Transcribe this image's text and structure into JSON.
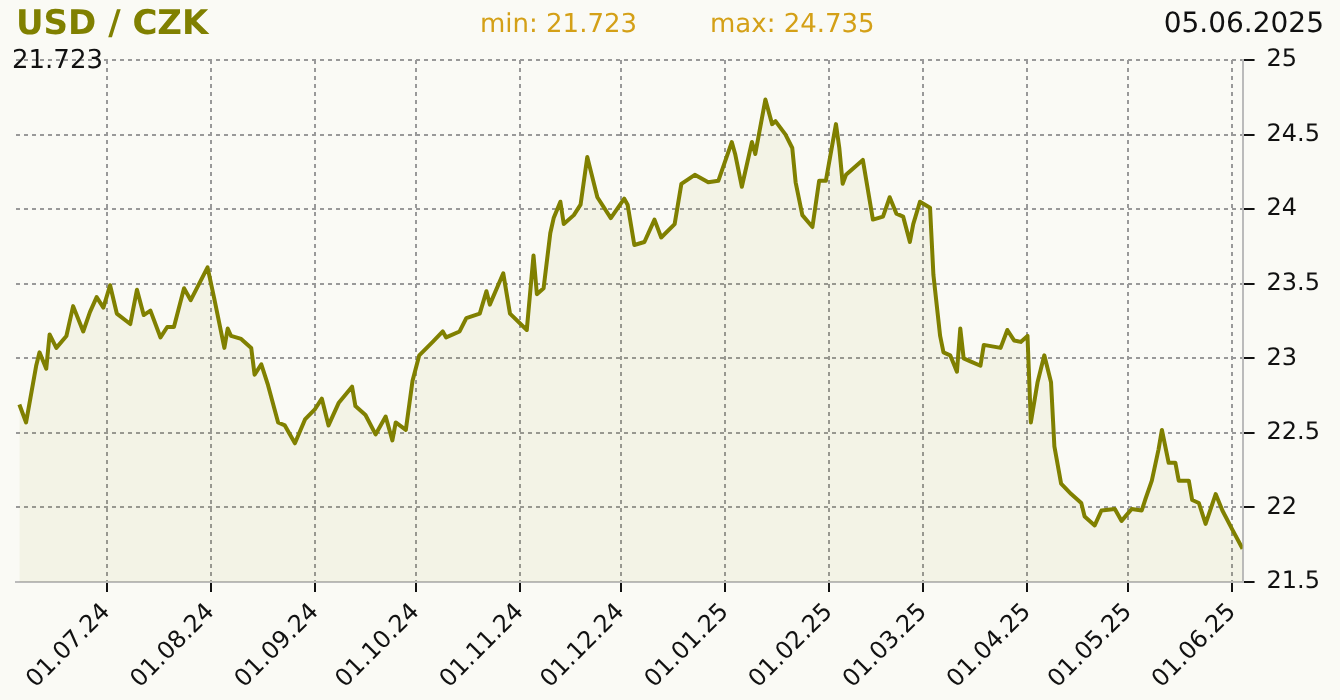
{
  "chart_data": {
    "type": "area",
    "title": "USD / CZK",
    "annotations": [
      "min: 21.723",
      "max: 24.735",
      "05.06.2025",
      "21.723"
    ],
    "x": [
      "2024-06-05",
      "2024-06-07",
      "2024-06-10",
      "2024-06-11",
      "2024-06-13",
      "2024-06-14",
      "2024-06-16",
      "2024-06-19",
      "2024-06-21",
      "2024-06-24",
      "2024-06-26",
      "2024-06-28",
      "2024-06-30",
      "2024-07-02",
      "2024-07-04",
      "2024-07-08",
      "2024-07-10",
      "2024-07-12",
      "2024-07-14",
      "2024-07-17",
      "2024-07-19",
      "2024-07-21",
      "2024-07-24",
      "2024-07-26",
      "2024-07-31",
      "2024-08-02",
      "2024-08-05",
      "2024-08-06",
      "2024-08-07",
      "2024-08-10",
      "2024-08-13",
      "2024-08-14",
      "2024-08-16",
      "2024-08-18",
      "2024-08-21",
      "2024-08-23",
      "2024-08-26",
      "2024-08-29",
      "2024-09-01",
      "2024-09-03",
      "2024-09-05",
      "2024-09-08",
      "2024-09-12",
      "2024-09-13",
      "2024-09-16",
      "2024-09-19",
      "2024-09-22",
      "2024-09-24",
      "2024-09-25",
      "2024-09-28",
      "2024-09-30",
      "2024-10-02",
      "2024-10-06",
      "2024-10-09",
      "2024-10-10",
      "2024-10-14",
      "2024-10-16",
      "2024-10-20",
      "2024-10-22",
      "2024-10-23",
      "2024-10-27",
      "2024-10-29",
      "2024-11-03",
      "2024-11-05",
      "2024-11-06",
      "2024-11-08",
      "2024-11-10",
      "2024-11-11",
      "2024-11-13",
      "2024-11-14",
      "2024-11-17",
      "2024-11-19",
      "2024-11-21",
      "2024-11-22",
      "2024-11-24",
      "2024-11-28",
      "2024-12-02",
      "2024-12-03",
      "2024-12-05",
      "2024-12-08",
      "2024-12-11",
      "2024-12-13",
      "2024-12-17",
      "2024-12-19",
      "2024-12-23",
      "2024-12-27",
      "2024-12-30",
      "2025-01-03",
      "2025-01-04",
      "2025-01-06",
      "2025-01-09",
      "2025-01-10",
      "2025-01-13",
      "2025-01-15",
      "2025-01-16",
      "2025-01-19",
      "2025-01-21",
      "2025-01-22",
      "2025-01-24",
      "2025-01-27",
      "2025-01-29",
      "2025-01-31",
      "2025-02-03",
      "2025-02-04",
      "2025-02-05",
      "2025-02-06",
      "2025-02-11",
      "2025-02-14",
      "2025-02-17",
      "2025-02-19",
      "2025-02-21",
      "2025-02-23",
      "2025-02-25",
      "2025-02-26",
      "2025-02-28",
      "2025-03-03",
      "2025-03-04",
      "2025-03-06",
      "2025-03-07",
      "2025-03-09",
      "2025-03-11",
      "2025-03-12",
      "2025-03-13",
      "2025-03-15",
      "2025-03-18",
      "2025-03-19",
      "2025-03-24",
      "2025-03-26",
      "2025-03-28",
      "2025-03-30",
      "2025-04-01",
      "2025-04-02",
      "2025-04-04",
      "2025-04-06",
      "2025-04-08",
      "2025-04-09",
      "2025-04-11",
      "2025-04-14",
      "2025-04-17",
      "2025-04-18",
      "2025-04-21",
      "2025-04-23",
      "2025-04-27",
      "2025-04-29",
      "2025-05-02",
      "2025-05-05",
      "2025-05-06",
      "2025-05-08",
      "2025-05-10",
      "2025-05-11",
      "2025-05-13",
      "2025-05-15",
      "2025-05-16",
      "2025-05-19",
      "2025-05-20",
      "2025-05-22",
      "2025-05-24",
      "2025-05-27",
      "2025-05-29",
      "2025-06-01",
      "2025-06-04"
    ],
    "series": [
      {
        "color": "#808000",
        "values": [
          22.69,
          22.57,
          22.95,
          23.04,
          22.93,
          23.16,
          23.07,
          23.15,
          23.35,
          23.18,
          23.31,
          23.41,
          23.34,
          23.49,
          23.3,
          23.23,
          23.46,
          23.29,
          23.32,
          23.14,
          23.21,
          23.21,
          23.47,
          23.39,
          23.61,
          23.4,
          23.07,
          23.2,
          23.15,
          23.13,
          23.07,
          22.89,
          22.96,
          22.82,
          22.57,
          22.55,
          22.43,
          22.59,
          22.66,
          22.73,
          22.55,
          22.7,
          22.81,
          22.68,
          22.62,
          22.49,
          22.61,
          22.45,
          22.57,
          22.52,
          22.85,
          23.02,
          23.11,
          23.18,
          23.14,
          23.18,
          23.27,
          23.3,
          23.45,
          23.36,
          23.57,
          23.3,
          23.19,
          23.69,
          23.43,
          23.47,
          23.84,
          23.94,
          24.05,
          23.9,
          23.96,
          24.03,
          24.35,
          24.26,
          24.08,
          23.94,
          24.07,
          24.03,
          23.76,
          23.78,
          23.93,
          23.81,
          23.9,
          24.17,
          24.23,
          24.18,
          24.19,
          24.45,
          24.37,
          24.15,
          24.45,
          24.37,
          24.735,
          24.57,
          24.59,
          24.5,
          24.41,
          24.18,
          23.96,
          23.88,
          24.19,
          24.19,
          24.57,
          24.41,
          24.17,
          24.23,
          24.33,
          23.93,
          23.95,
          24.08,
          23.97,
          23.95,
          23.78,
          23.9,
          24.05,
          24.01,
          23.56,
          23.15,
          23.04,
          23.02,
          22.91,
          23.2,
          23.0,
          22.98,
          22.95,
          23.09,
          23.07,
          23.19,
          23.12,
          23.11,
          23.15,
          22.57,
          22.84,
          23.02,
          22.84,
          22.41,
          22.16,
          22.09,
          22.03,
          21.94,
          21.88,
          21.98,
          21.99,
          21.91,
          21.99,
          21.98,
          22.05,
          22.18,
          22.39,
          22.52,
          22.3,
          22.3,
          22.18,
          22.18,
          22.05,
          22.03,
          21.89,
          22.09,
          21.98,
          21.85,
          21.723
        ]
      }
    ],
    "xlim": [
      "2024-06-04",
      "2025-06-04"
    ],
    "xticks": [
      {
        "value": "2024-07-01",
        "label": "01.07.24"
      },
      {
        "value": "2024-08-01",
        "label": "01.08.24"
      },
      {
        "value": "2024-09-01",
        "label": "01.09.24"
      },
      {
        "value": "2024-10-01",
        "label": "01.10.24"
      },
      {
        "value": "2024-11-01",
        "label": "01.11.24"
      },
      {
        "value": "2024-12-01",
        "label": "01.12.24"
      },
      {
        "value": "2025-01-01",
        "label": "01.01.25"
      },
      {
        "value": "2025-02-01",
        "label": "01.02.25"
      },
      {
        "value": "2025-03-01",
        "label": "01.03.25"
      },
      {
        "value": "2025-04-01",
        "label": "01.04.25"
      },
      {
        "value": "2025-05-01",
        "label": "01.05.25"
      },
      {
        "value": "2025-06-01",
        "label": "01.06.25"
      }
    ],
    "ylim": [
      21.5,
      25
    ],
    "yticks": [
      21.5,
      22,
      22.5,
      23,
      23.5,
      24,
      24.5,
      25
    ],
    "grid": true,
    "legend": false,
    "marker": "none",
    "line_style": "solid"
  }
}
